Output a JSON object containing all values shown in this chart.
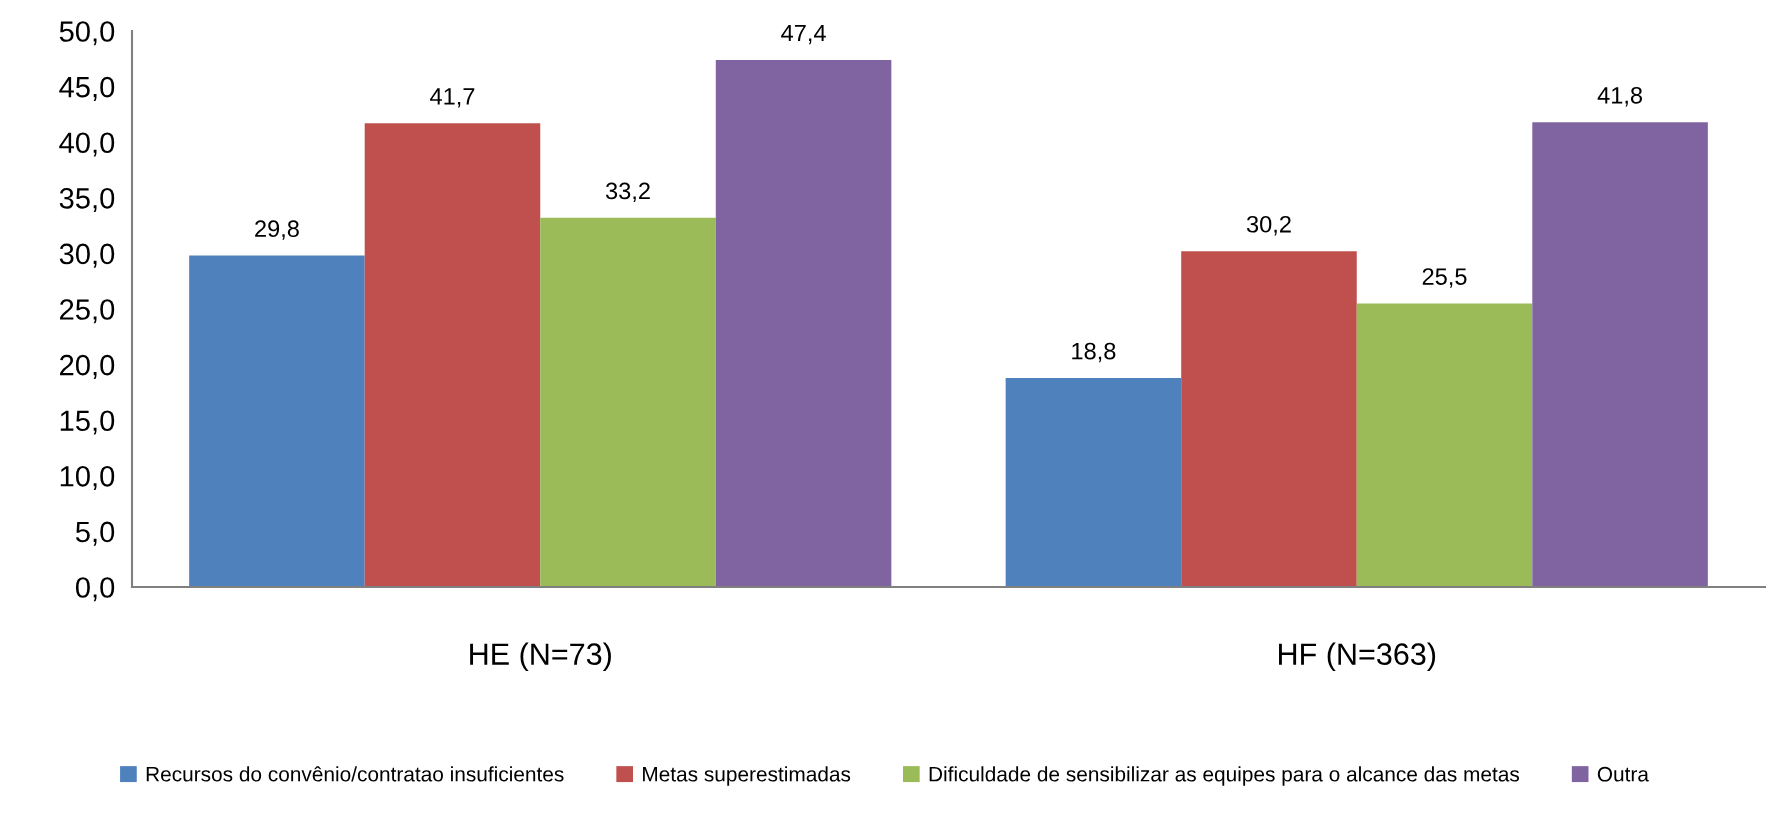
{
  "chart_data": {
    "type": "bar",
    "categories": [
      "HE (N=73)",
      "HF (N=363)"
    ],
    "series": [
      {
        "name": "Recursos do convênio/contratao insuficientes",
        "color": "#4f81bd",
        "values": [
          29.8,
          18.8
        ],
        "value_labels": [
          "29,8",
          "18,8"
        ]
      },
      {
        "name": "Metas superestimadas",
        "color": "#c0504d",
        "values": [
          41.7,
          30.2
        ],
        "value_labels": [
          "41,7",
          "30,2"
        ]
      },
      {
        "name": "Dificuldade de sensibilizar as equipes para o alcance das metas",
        "color": "#9bbb59",
        "values": [
          33.2,
          25.5
        ],
        "value_labels": [
          "33,2",
          "25,5"
        ]
      },
      {
        "name": "Outra",
        "color": "#8064a2",
        "values": [
          47.4,
          41.8
        ],
        "value_labels": [
          "47,4",
          "41,8"
        ]
      }
    ],
    "ylim": [
      0,
      50
    ],
    "yticks": [
      {
        "value": 0,
        "label": "0,0"
      },
      {
        "value": 5,
        "label": "5,0"
      },
      {
        "value": 10,
        "label": "10,0"
      },
      {
        "value": 15,
        "label": "15,0"
      },
      {
        "value": 20,
        "label": "20,0"
      },
      {
        "value": 25,
        "label": "25,0"
      },
      {
        "value": 30,
        "label": "30,0"
      },
      {
        "value": 35,
        "label": "35,0"
      },
      {
        "value": 40,
        "label": "40,0"
      },
      {
        "value": 45,
        "label": "45,0"
      },
      {
        "value": 50,
        "label": "50,0"
      }
    ],
    "grid": false,
    "legend": "bottom"
  }
}
